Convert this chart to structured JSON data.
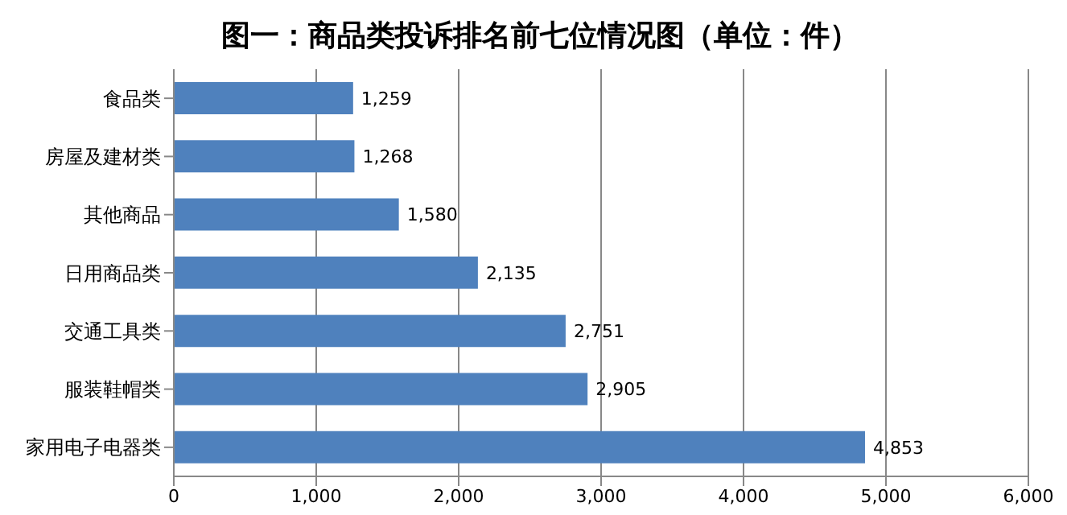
{
  "chart_data": {
    "type": "bar",
    "orientation": "horizontal",
    "title": "图一：商品类投诉排名前七位情况图（单位：件）",
    "categories": [
      "食品类",
      "房屋及建材类",
      "其他商品",
      "日用商品类",
      "交通工具类",
      "服装鞋帽类",
      "家用电子电器类"
    ],
    "values": [
      1259,
      1268,
      1580,
      2135,
      2751,
      2905,
      4853
    ],
    "value_labels": [
      "1,259",
      "1,268",
      "1,580",
      "2,135",
      "2,751",
      "2,905",
      "4,853"
    ],
    "color": "#4f81bd",
    "xlim": [
      0,
      6000
    ],
    "xticks": [
      0,
      {
        "value": 1000,
        "label": "1,000"
      },
      {
        "value": 2000,
        "label": "2,000"
      },
      {
        "value": 3000,
        "label": "3,000"
      },
      {
        "value": 4000,
        "label": "4,000"
      },
      {
        "value": 5000,
        "label": "5,000"
      },
      {
        "value": 6000,
        "label": "6,000"
      }
    ],
    "grid": "x",
    "legend": false
  }
}
